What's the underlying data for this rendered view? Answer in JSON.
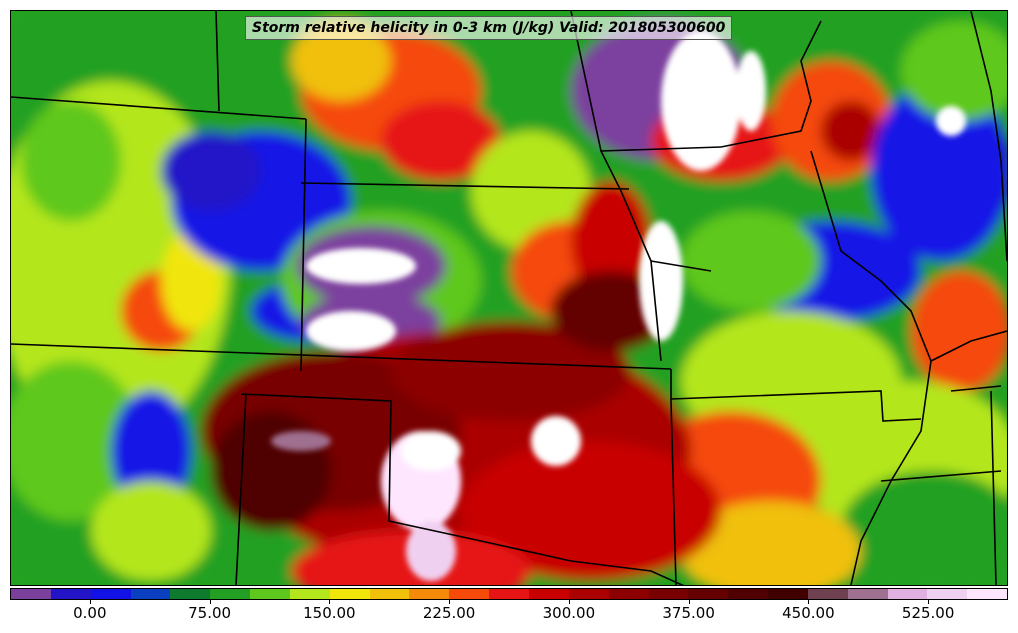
{
  "title": "Storm relative helicity in 0-3 km (J/kg) Valid: 201805300600",
  "colorbar": {
    "min": -50,
    "max": 575,
    "step": 25,
    "colors": [
      "#7b3f9e",
      "#2414c8",
      "#1212e6",
      "#0a40c0",
      "#0e7a2e",
      "#23a023",
      "#5ec81e",
      "#b4e61e",
      "#f0e60a",
      "#f0c00a",
      "#f58a0a",
      "#f54a0a",
      "#e61414",
      "#c80000",
      "#aa0000",
      "#8c0000",
      "#780000",
      "#640000",
      "#500000",
      "#400000",
      "#6e4050",
      "#a07090",
      "#e0b0e0",
      "#f0d0f0",
      "#ffe6ff"
    ],
    "tick_values": [
      "0.00",
      "75.00",
      "150.00",
      "225.00",
      "300.00",
      "375.00",
      "450.00",
      "525.00"
    ]
  },
  "map": {
    "description_layers": [
      "state-boundaries",
      "helicity-field"
    ]
  }
}
